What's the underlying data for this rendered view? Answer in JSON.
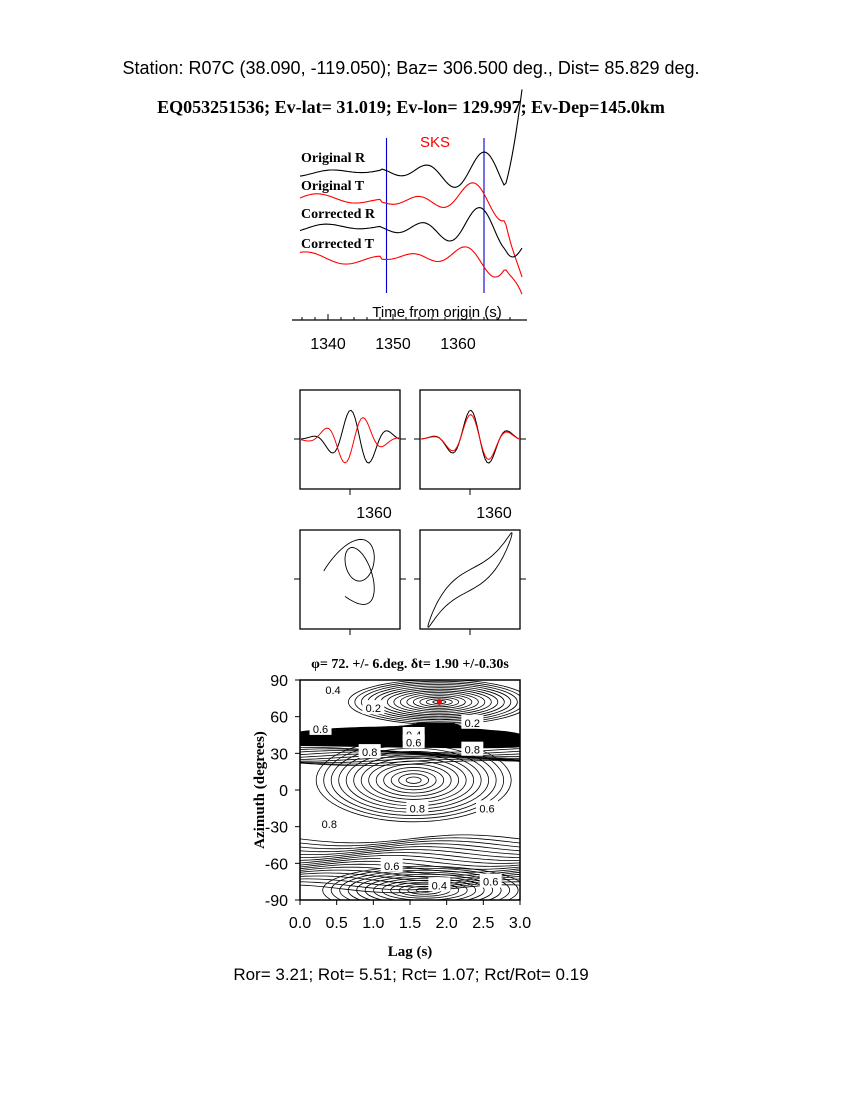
{
  "header": {
    "station_line": "Station: R07C (38.090, -119.050); Baz=  306.500 deg., Dist=   85.829 deg.",
    "event_line": "EQ053251536; Ev-lat=  31.019; Ev-lon= 129.997; Ev-Dep=145.0km"
  },
  "footer": {
    "ratios_line": "Ror= 3.21; Rot= 5.51; Rct= 1.07; Rct/Rot= 0.19"
  },
  "colors": {
    "radial": "#000000",
    "transverse": "#ff0000",
    "window_marker": "#0000cc",
    "best_fit_marker": "#ff0000"
  },
  "chart_data": [
    {
      "type": "line",
      "id": "seismograms",
      "phase_label": "SKS",
      "xlabel": "Time from origin (s)",
      "x_ticks": [
        "1340",
        "1350",
        "1360"
      ],
      "x_tick_values": [
        1340,
        1350,
        1360
      ],
      "xlim": [
        1335.5,
        1370
      ],
      "analysis_window": [
        1349,
        1364
      ],
      "series": [
        {
          "name": "Original R",
          "component": "radial",
          "color": "#000000"
        },
        {
          "name": "Original T",
          "component": "transverse",
          "color": "#ff0000"
        },
        {
          "name": "Corrected R",
          "component": "radial",
          "color": "#000000"
        },
        {
          "name": "Corrected T",
          "component": "transverse",
          "color": "#ff0000"
        }
      ]
    },
    {
      "type": "line",
      "id": "waveform-comparison",
      "panels": [
        {
          "name": "original fast/slow waveforms",
          "x_tick": "1360"
        },
        {
          "name": "corrected fast/slow waveforms",
          "x_tick": "1360"
        }
      ]
    },
    {
      "type": "line",
      "id": "particle-motion",
      "panels": [
        {
          "name": "original particle motion"
        },
        {
          "name": "corrected particle motion"
        }
      ]
    },
    {
      "type": "heatmap",
      "id": "splitting-grid",
      "title": "φ= 72. +/- 6.deg. δt= 1.90 +/-0.30s",
      "xlabel": "Lag (s)",
      "ylabel": "Azimuth (degrees)",
      "xlim": [
        0.0,
        3.0
      ],
      "ylim": [
        -90,
        90
      ],
      "x_ticks": [
        "0.0",
        "0.5",
        "1.0",
        "1.5",
        "2.0",
        "2.5",
        "3.0"
      ],
      "y_ticks": [
        "90",
        "60",
        "30",
        "0",
        "-30",
        "-60",
        "-90"
      ],
      "best_fit": {
        "lag": 1.9,
        "azimuth": 72
      },
      "contour_labels": [
        {
          "text": "0.4",
          "lag": 0.45,
          "azimuth": 82
        },
        {
          "text": "0.2",
          "lag": 1.0,
          "azimuth": 67
        },
        {
          "text": "0.6",
          "lag": 0.28,
          "azimuth": 50
        },
        {
          "text": "0.2",
          "lag": 2.35,
          "azimuth": 55
        },
        {
          "text": "0.4",
          "lag": 1.55,
          "azimuth": 45
        },
        {
          "text": "0.6",
          "lag": 1.55,
          "azimuth": 39
        },
        {
          "text": "0.8",
          "lag": 0.95,
          "azimuth": 31
        },
        {
          "text": "0.8",
          "lag": 2.35,
          "azimuth": 33
        },
        {
          "text": "0.8",
          "lag": 1.6,
          "azimuth": -15
        },
        {
          "text": "0.6",
          "lag": 2.55,
          "azimuth": -15
        },
        {
          "text": "0.8",
          "lag": 0.4,
          "azimuth": -28
        },
        {
          "text": "0.6",
          "lag": 1.25,
          "azimuth": -62
        },
        {
          "text": "0.4",
          "lag": 1.9,
          "azimuth": -78
        },
        {
          "text": "0.6",
          "lag": 2.6,
          "azimuth": -75
        }
      ]
    }
  ]
}
